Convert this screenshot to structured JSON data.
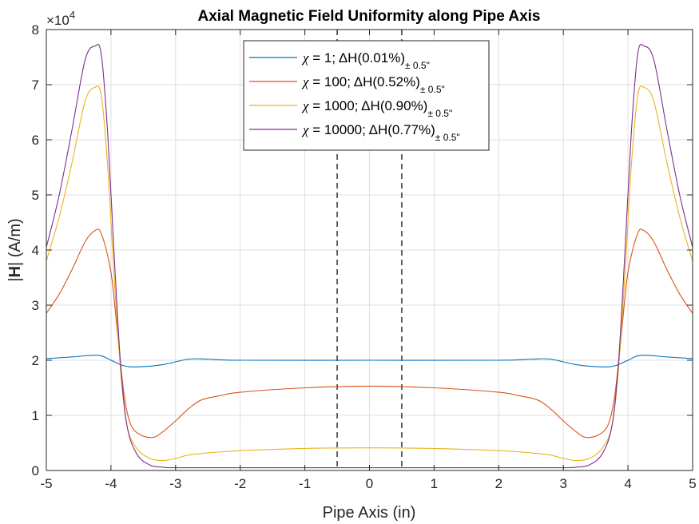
{
  "chart_data": {
    "type": "line",
    "title": "Axial Magnetic Field Uniformity along Pipe Axis",
    "xlabel": "Pipe Axis (in)",
    "ylabel_prefix": "|",
    "ylabel_bold": "H",
    "ylabel_suffix": "| (A/m)",
    "y_exponent_label": "×10",
    "y_exponent_power": "4",
    "xlim": [
      -5,
      5
    ],
    "ylim": [
      0,
      8
    ],
    "y_scale_factor": 10000,
    "x_ticks": [
      "-5",
      "-4",
      "-3",
      "-2",
      "-1",
      "0",
      "1",
      "2",
      "3",
      "4",
      "5"
    ],
    "y_ticks": [
      "0",
      "1",
      "2",
      "3",
      "4",
      "5",
      "6",
      "7",
      "8"
    ],
    "grid": true,
    "legend_position": "top-center",
    "vertical_markers": [
      -0.5,
      0.5
    ],
    "series": [
      {
        "legend_chi": "χ",
        "legend_main": " = 1; ΔH(0.01%)",
        "legend_sub": "± 0.5\"",
        "color": "#0072BD",
        "points": [
          [
            -5,
            2.03
          ],
          [
            -4.6,
            2.06
          ],
          [
            -4.2,
            2.09
          ],
          [
            -4.0,
            2.0
          ],
          [
            -3.8,
            1.9
          ],
          [
            -3.6,
            1.88
          ],
          [
            -3.2,
            1.92
          ],
          [
            -2.8,
            2.02
          ],
          [
            -2.5,
            2.02
          ],
          [
            -2,
            2.0
          ],
          [
            0,
            2.0
          ],
          [
            2,
            2.0
          ],
          [
            2.5,
            2.02
          ],
          [
            2.8,
            2.02
          ],
          [
            3.2,
            1.92
          ],
          [
            3.6,
            1.88
          ],
          [
            3.8,
            1.9
          ],
          [
            4.0,
            2.0
          ],
          [
            4.2,
            2.09
          ],
          [
            4.6,
            2.06
          ],
          [
            5,
            2.03
          ]
        ]
      },
      {
        "legend_chi": "χ",
        "legend_main": " = 100; ΔH(0.52%)",
        "legend_sub": "± 0.5\"",
        "color": "#D95319",
        "points": [
          [
            -5,
            2.85
          ],
          [
            -4.8,
            3.2
          ],
          [
            -4.6,
            3.65
          ],
          [
            -4.4,
            4.15
          ],
          [
            -4.25,
            4.35
          ],
          [
            -4.15,
            4.3
          ],
          [
            -4.0,
            3.6
          ],
          [
            -3.9,
            2.5
          ],
          [
            -3.8,
            1.4
          ],
          [
            -3.7,
            0.85
          ],
          [
            -3.55,
            0.65
          ],
          [
            -3.35,
            0.6
          ],
          [
            -3.2,
            0.7
          ],
          [
            -3.0,
            0.9
          ],
          [
            -2.8,
            1.12
          ],
          [
            -2.6,
            1.28
          ],
          [
            -2.3,
            1.36
          ],
          [
            -2,
            1.42
          ],
          [
            -1,
            1.5
          ],
          [
            0,
            1.53
          ],
          [
            1,
            1.5
          ],
          [
            2,
            1.42
          ],
          [
            2.3,
            1.36
          ],
          [
            2.6,
            1.28
          ],
          [
            2.8,
            1.12
          ],
          [
            3.0,
            0.9
          ],
          [
            3.2,
            0.7
          ],
          [
            3.35,
            0.6
          ],
          [
            3.55,
            0.65
          ],
          [
            3.7,
            0.85
          ],
          [
            3.8,
            1.4
          ],
          [
            3.9,
            2.5
          ],
          [
            4.0,
            3.6
          ],
          [
            4.15,
            4.3
          ],
          [
            4.25,
            4.35
          ],
          [
            4.4,
            4.15
          ],
          [
            4.6,
            3.65
          ],
          [
            4.8,
            3.2
          ],
          [
            5,
            2.85
          ]
        ]
      },
      {
        "legend_chi": "χ",
        "legend_main": " = 1000; ΔH(0.90%)",
        "legend_sub": "± 0.5\"",
        "color": "#EDB120",
        "points": [
          [
            -5,
            3.8
          ],
          [
            -4.8,
            4.6
          ],
          [
            -4.6,
            5.6
          ],
          [
            -4.4,
            6.7
          ],
          [
            -4.25,
            6.95
          ],
          [
            -4.15,
            6.8
          ],
          [
            -4.05,
            5.5
          ],
          [
            -3.95,
            3.5
          ],
          [
            -3.85,
            1.8
          ],
          [
            -3.75,
            0.8
          ],
          [
            -3.6,
            0.4
          ],
          [
            -3.4,
            0.22
          ],
          [
            -3.2,
            0.18
          ],
          [
            -3.0,
            0.22
          ],
          [
            -2.8,
            0.28
          ],
          [
            -2.5,
            0.32
          ],
          [
            -2,
            0.36
          ],
          [
            -1,
            0.4
          ],
          [
            0,
            0.41
          ],
          [
            1,
            0.4
          ],
          [
            2,
            0.36
          ],
          [
            2.5,
            0.32
          ],
          [
            2.8,
            0.28
          ],
          [
            3.0,
            0.22
          ],
          [
            3.2,
            0.18
          ],
          [
            3.4,
            0.22
          ],
          [
            3.6,
            0.4
          ],
          [
            3.75,
            0.8
          ],
          [
            3.85,
            1.8
          ],
          [
            3.95,
            3.5
          ],
          [
            4.05,
            5.5
          ],
          [
            4.15,
            6.8
          ],
          [
            4.25,
            6.95
          ],
          [
            4.4,
            6.7
          ],
          [
            4.6,
            5.6
          ],
          [
            4.8,
            4.6
          ],
          [
            5,
            3.8
          ]
        ]
      },
      {
        "legend_chi": "χ",
        "legend_main": " = 10000; ΔH(0.77%)",
        "legend_sub": "± 0.5\"",
        "color": "#7E2F8E",
        "points": [
          [
            -5,
            4.05
          ],
          [
            -4.8,
            5.0
          ],
          [
            -4.6,
            6.2
          ],
          [
            -4.4,
            7.45
          ],
          [
            -4.25,
            7.7
          ],
          [
            -4.15,
            7.55
          ],
          [
            -4.05,
            6.1
          ],
          [
            -3.95,
            3.9
          ],
          [
            -3.85,
            1.9
          ],
          [
            -3.75,
            0.8
          ],
          [
            -3.6,
            0.3
          ],
          [
            -3.4,
            0.1
          ],
          [
            -3.2,
            0.06
          ],
          [
            -3.0,
            0.05
          ],
          [
            -2,
            0.05
          ],
          [
            0,
            0.05
          ],
          [
            2,
            0.05
          ],
          [
            3.0,
            0.05
          ],
          [
            3.2,
            0.06
          ],
          [
            3.4,
            0.1
          ],
          [
            3.6,
            0.3
          ],
          [
            3.75,
            0.8
          ],
          [
            3.85,
            1.9
          ],
          [
            3.95,
            3.9
          ],
          [
            4.05,
            6.1
          ],
          [
            4.15,
            7.55
          ],
          [
            4.25,
            7.7
          ],
          [
            4.4,
            7.45
          ],
          [
            4.6,
            6.2
          ],
          [
            4.8,
            5.0
          ],
          [
            5,
            4.05
          ]
        ]
      }
    ]
  }
}
